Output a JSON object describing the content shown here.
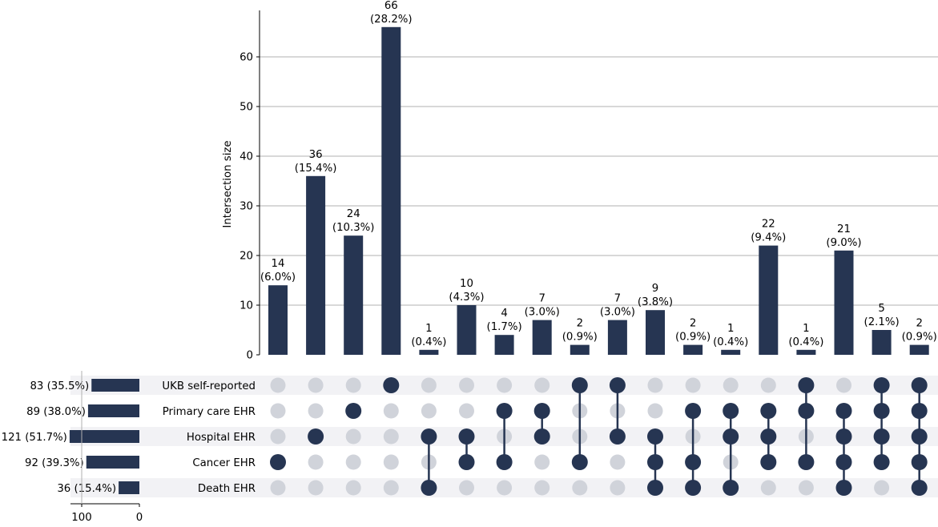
{
  "colors": {
    "bar": "#263552",
    "dot_active": "#263552",
    "dot_inactive": "#d0d3da",
    "stripe": "#f2f2f5",
    "grid": "#b0b0b0",
    "axis": "#000000"
  },
  "chart_data": {
    "type": "upset",
    "ylabel": "Intersection size",
    "ylim": [
      0,
      70
    ],
    "yticks": [
      0,
      10,
      20,
      30,
      40,
      50,
      60
    ],
    "sets": [
      {
        "name": "UKB self-reported",
        "size": 83,
        "label": "83 (35.5%)"
      },
      {
        "name": "Primary care EHR",
        "size": 89,
        "label": "89 (38.0%)"
      },
      {
        "name": "Hospital EHR",
        "size": 121,
        "label": "121 (51.7%)"
      },
      {
        "name": "Cancer EHR",
        "size": 92,
        "label": "92 (39.3%)"
      },
      {
        "name": "Death EHR",
        "size": 36,
        "label": "36 (15.4%)"
      }
    ],
    "set_size_ticks": [
      100,
      0
    ],
    "set_size_range": [
      0,
      121
    ],
    "intersections": [
      {
        "value": 14,
        "pct": "(6.0%)",
        "members": [
          3
        ]
      },
      {
        "value": 36,
        "pct": "(15.4%)",
        "members": [
          2
        ]
      },
      {
        "value": 24,
        "pct": "(10.3%)",
        "members": [
          1
        ]
      },
      {
        "value": 66,
        "pct": "(28.2%)",
        "members": [
          0
        ]
      },
      {
        "value": 1,
        "pct": "(0.4%)",
        "members": [
          2,
          4
        ]
      },
      {
        "value": 10,
        "pct": "(4.3%)",
        "members": [
          2,
          3
        ]
      },
      {
        "value": 4,
        "pct": "(1.7%)",
        "members": [
          1,
          3
        ]
      },
      {
        "value": 7,
        "pct": "(3.0%)",
        "members": [
          1,
          2
        ]
      },
      {
        "value": 2,
        "pct": "(0.9%)",
        "members": [
          0,
          3
        ]
      },
      {
        "value": 7,
        "pct": "(3.0%)",
        "members": [
          0,
          2
        ]
      },
      {
        "value": 9,
        "pct": "(3.8%)",
        "members": [
          2,
          3,
          4
        ]
      },
      {
        "value": 2,
        "pct": "(0.9%)",
        "members": [
          1,
          3,
          4
        ]
      },
      {
        "value": 1,
        "pct": "(0.4%)",
        "members": [
          1,
          2,
          4
        ]
      },
      {
        "value": 22,
        "pct": "(9.4%)",
        "members": [
          1,
          2,
          3
        ]
      },
      {
        "value": 1,
        "pct": "(0.4%)",
        "members": [
          0,
          1,
          3
        ]
      },
      {
        "value": 21,
        "pct": "(9.0%)",
        "members": [
          1,
          2,
          3,
          4
        ]
      },
      {
        "value": 5,
        "pct": "(2.1%)",
        "members": [
          0,
          1,
          2,
          3
        ]
      },
      {
        "value": 2,
        "pct": "(0.9%)",
        "members": [
          0,
          1,
          2,
          3,
          4
        ]
      }
    ]
  }
}
